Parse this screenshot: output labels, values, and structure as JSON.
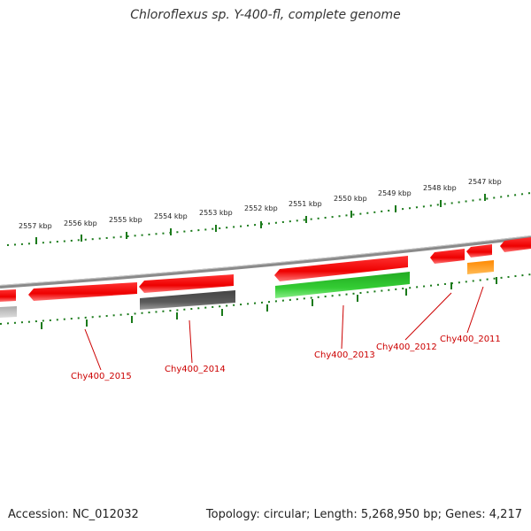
{
  "header": {
    "title": "Chloroflexus sp. Y-400-fl, complete genome"
  },
  "footer": {
    "accession": "Accession: NC_012032",
    "summary": "Topology: circular; Length: 5,268,950 bp; Genes: 4,217"
  },
  "scale_labels": [
    "2557 kbp",
    "2556 kbp",
    "2555 kbp",
    "2554 kbp",
    "2553 kbp",
    "2552 kbp",
    "2551 kbp",
    "2550 kbp",
    "2549 kbp",
    "2548 kbp",
    "2547 kbp"
  ],
  "gene_labels": [
    "Chy400_2015",
    "Chy400_2014",
    "Chy400_2013",
    "Chy400_2012",
    "Chy400_2011"
  ],
  "colors": {
    "backbone": "#8a8a8a",
    "cds": "#ff0000",
    "gene_grey": "#555555",
    "gene_green": "#33cc33",
    "gene_orange": "#ff8800",
    "gene_light_grey": "#bbbbbb",
    "ruler": "#1a7a1a",
    "label": "#cc0000"
  }
}
